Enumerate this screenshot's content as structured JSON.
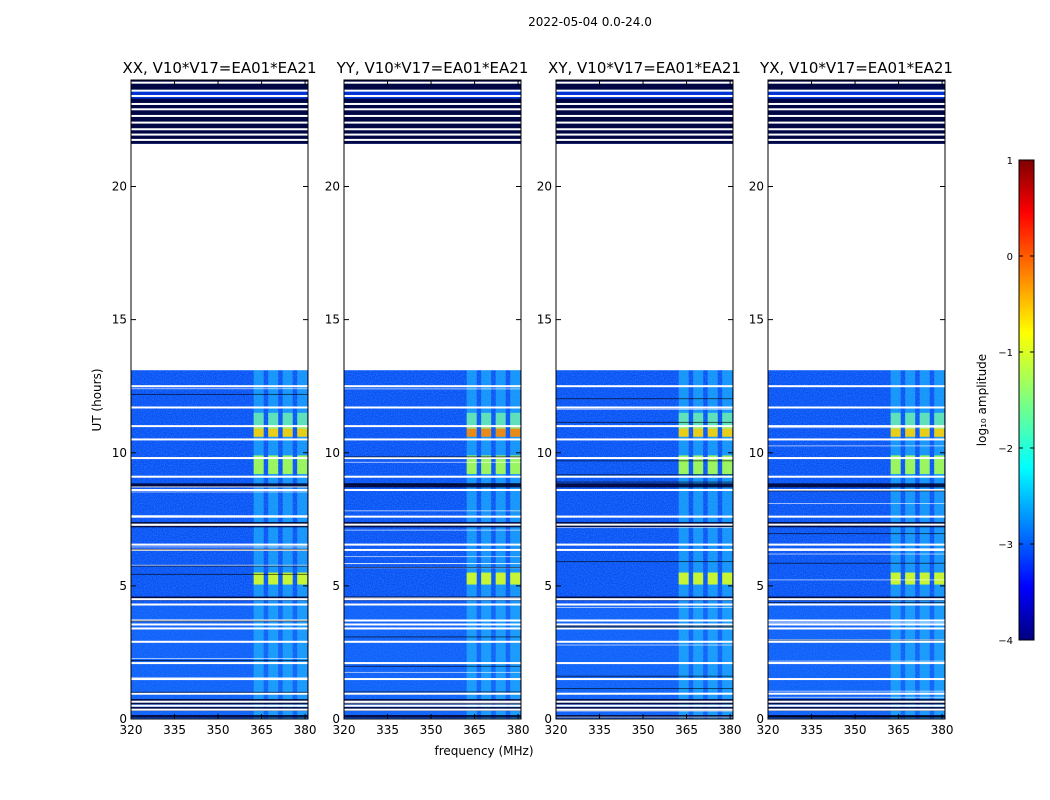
{
  "figure": {
    "suptitle": "2022-05-04 0.0-24.0"
  },
  "chart_data": {
    "type": "heatmap",
    "panels": [
      {
        "title": "XX, V10*V17=EA01*EA21"
      },
      {
        "title": "YY, V10*V17=EA01*EA21"
      },
      {
        "title": "XY, V10*V17=EA01*EA21"
      },
      {
        "title": "YX, V10*V17=EA01*EA21"
      }
    ],
    "xlabel": "frequency (MHz)",
    "ylabel": "UT (hours)",
    "xlim": [
      320,
      381
    ],
    "ylim": [
      0,
      24
    ],
    "x_ticks": [
      320,
      335,
      350,
      365,
      380
    ],
    "y_ticks": [
      0,
      5,
      10,
      15,
      20
    ],
    "colorbar": {
      "label": "log₁₀ amplitude",
      "range": [
        -4,
        1
      ],
      "ticks": [
        1,
        0,
        -1,
        -2,
        -3,
        -4
      ],
      "colormap": "jet"
    },
    "data_gap_hours": [
      13.1,
      21.6
    ],
    "flagged_hours": [
      0.35,
      0.5,
      0.65,
      0.95,
      1.5,
      2.1,
      2.9,
      3.4,
      3.55,
      3.7,
      4.3,
      4.5,
      6.35,
      6.55,
      7.3,
      7.6,
      8.6,
      9.1,
      9.8,
      10.5,
      11.0,
      11.7,
      12.5,
      21.75,
      21.95,
      22.15,
      22.4,
      22.65,
      22.9,
      23.1,
      23.4,
      23.6,
      23.9
    ],
    "dark_bands_hours": [
      [
        0.3,
        0.45
      ],
      [
        0.55,
        0.75
      ],
      [
        0.05,
        0.15
      ],
      [
        4.45,
        4.6
      ],
      [
        7.2,
        7.4
      ],
      [
        8.7,
        8.85
      ],
      [
        21.6,
        23.3
      ],
      [
        23.6,
        24.0
      ]
    ],
    "rfi_channels_mhz": [
      364,
      369,
      374,
      379
    ],
    "rfi_strong_hours": [
      [
        5.05,
        5.5
      ],
      [
        9.2,
        9.9
      ],
      [
        10.6,
        11.0
      ]
    ]
  }
}
